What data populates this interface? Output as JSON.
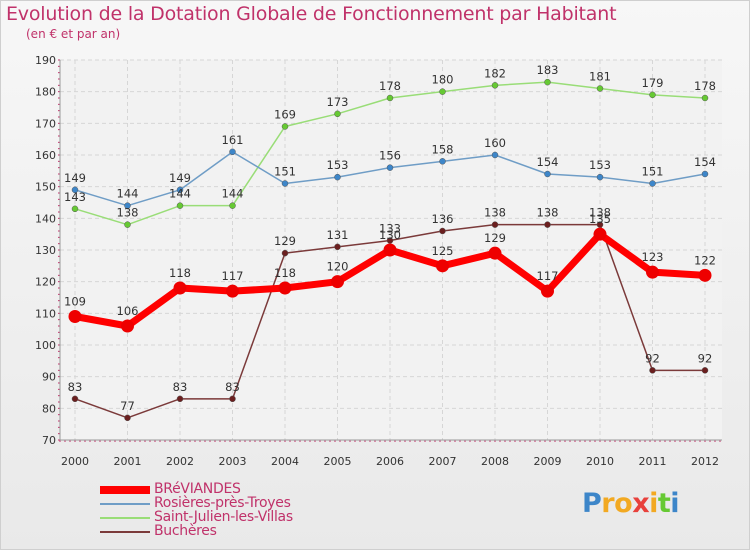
{
  "chart_data": {
    "type": "line",
    "title": "Evolution de la Dotation Globale de Fonctionnement par Habitant",
    "subtitle": "(en € et par an)",
    "categories": [
      "2000",
      "2001",
      "2002",
      "2003",
      "2004",
      "2005",
      "2006",
      "2007",
      "2008",
      "2009",
      "2010",
      "2011",
      "2012"
    ],
    "ylim": [
      70,
      190
    ],
    "yticks": [
      70,
      80,
      90,
      100,
      110,
      120,
      130,
      140,
      150,
      160,
      170,
      180,
      190
    ],
    "series": [
      {
        "name": "BRéVIANDES",
        "color": "#ff0000",
        "marker": "#ee0000",
        "values": [
          109,
          106,
          118,
          117,
          118,
          120,
          130,
          125,
          129,
          117,
          135,
          123,
          122
        ],
        "thick": true
      },
      {
        "name": "Rosières-près-Troyes",
        "color": "#6f9dc6",
        "marker": "#3d86c9",
        "values": [
          149,
          144,
          149,
          161,
          151,
          153,
          156,
          158,
          160,
          154,
          153,
          151,
          154
        ]
      },
      {
        "name": "Saint-Julien-les-Villas",
        "color": "#99dd77",
        "marker": "#66c933",
        "values": [
          143,
          138,
          144,
          144,
          169,
          173,
          178,
          180,
          182,
          183,
          181,
          179,
          178
        ]
      },
      {
        "name": "Buchères",
        "color": "#7b3a3a",
        "marker": "#6b1f1f",
        "values": [
          83,
          77,
          83,
          83,
          129,
          131,
          133,
          136,
          138,
          138,
          138,
          92,
          92
        ]
      }
    ]
  },
  "branding": {
    "letters": [
      "P",
      "r",
      "o",
      "x",
      "i",
      "t",
      "i"
    ],
    "colors": [
      "#3d86c9",
      "#f2a922",
      "#f2a922",
      "#e8413c",
      "#f2a922",
      "#66c933",
      "#3d86c9"
    ]
  }
}
